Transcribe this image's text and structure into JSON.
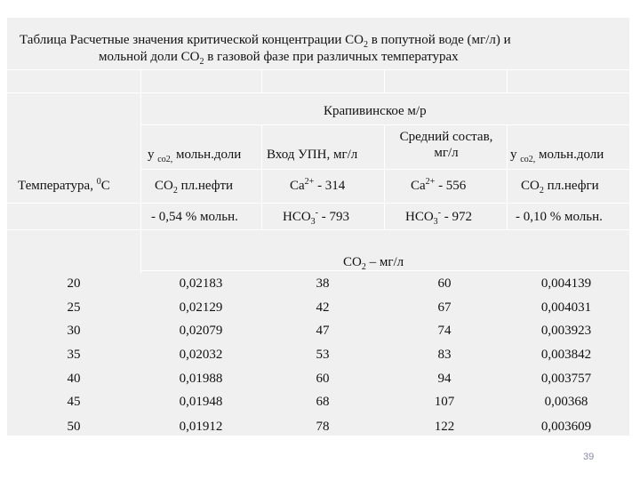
{
  "caption": {
    "line1_a": "Таблица   Расчетные значения критической концентрации СО",
    "line1_sub": "2",
    "line1_b": " в попутной воде (мг/л) и",
    "line2_a": "мольной доли СО",
    "line2_sub": "2",
    "line2_b": " в газовой фазе при различных температурах"
  },
  "header": {
    "field": "Крапивинское м/р",
    "temp_label": "Температура, ",
    "temp_sup": "0",
    "temp_unit": "С",
    "col1_a": "y ",
    "col1_sub": "co2,",
    "col1_b": " мольн.доли",
    "col2": "Вход УПН, мг/л",
    "col3_l1": "Средний состав,",
    "col3_l2": "мг/л",
    "col4_a": "y ",
    "col4_sub": "co2,",
    "col4_b": " мольн.доли",
    "r2c1_a": "СО",
    "r2c1_sub": "2",
    "r2c1_b": " пл.нефти",
    "r2c2_a": "Са",
    "r2c2_sup": "2+",
    "r2c2_b": " - 314",
    "r2c3_a": "Са",
    "r2c3_sup": "2+",
    "r2c3_b": " - 556",
    "r2c4_a": "СО",
    "r2c4_sub": "2",
    "r2c4_b": " пл.нефги",
    "r3c1": "- 0,54 % мольн.",
    "r3c2_a": "НСО",
    "r3c2_sub": "3",
    "r3c2_sup": "-",
    "r3c2_b": " - 793",
    "r3c3_a": "НСО",
    "r3c3_sub": "3",
    "r3c3_sup": "-",
    "r3c3_b": " - 972",
    "r3c4": "- 0,10 % мольн.",
    "co2_a": "СО",
    "co2_sub": "2",
    "co2_b": " – мг/л"
  },
  "rows": [
    {
      "t": "20",
      "y1": "0,02183",
      "in": "38",
      "avg": "60",
      "y2": "0,004139"
    },
    {
      "t": "25",
      "y1": "0,02129",
      "in": "42",
      "avg": "67",
      "y2": "0,004031"
    },
    {
      "t": "30",
      "y1": "0,02079",
      "in": "47",
      "avg": "74",
      "y2": "0,003923"
    },
    {
      "t": "35",
      "y1": "0,02032",
      "in": "53",
      "avg": "83",
      "y2": "0,003842"
    },
    {
      "t": "40",
      "y1": "0,01988",
      "in": "60",
      "avg": "94",
      "y2": "0,003757"
    },
    {
      "t": "45",
      "y1": "0,01948",
      "in": "68",
      "avg": "107",
      "y2": "0,00368"
    },
    {
      "t": "50",
      "y1": "0,01912",
      "in": "78",
      "avg": "122",
      "y2": "0,003609"
    }
  ],
  "page_number": "39"
}
